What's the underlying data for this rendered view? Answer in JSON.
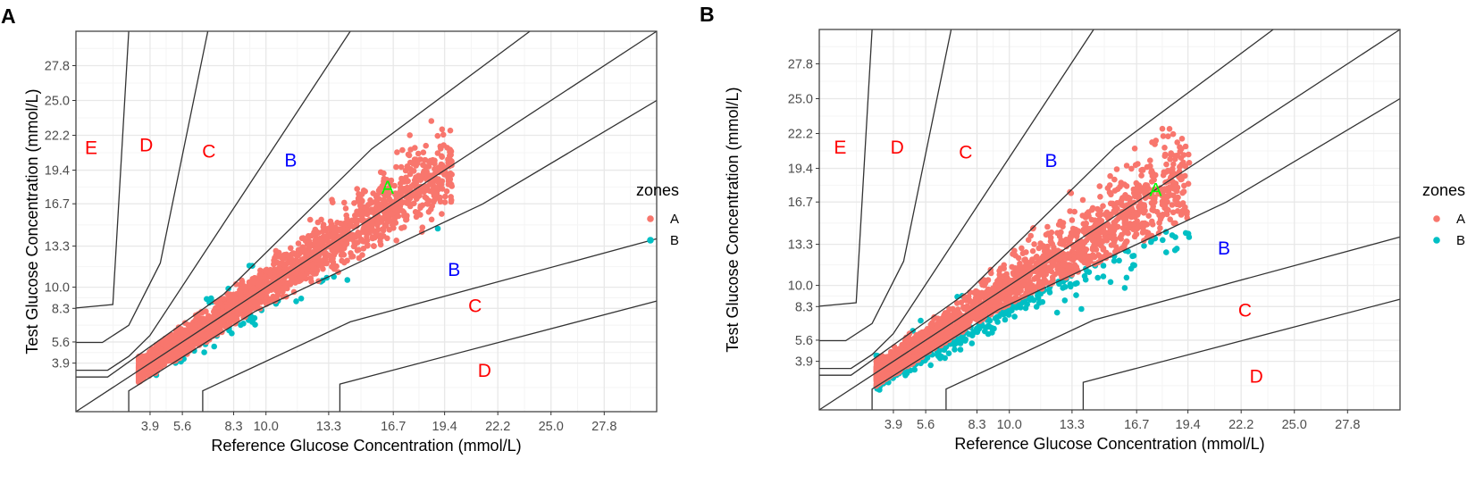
{
  "chart_data": [
    {
      "panel": "A",
      "type": "scatter",
      "title": "A",
      "xlabel": "Reference Glucose Concentration (mmol/L)",
      "ylabel": "Test Glucose Concentration (mmol/L)",
      "xlim": [
        0,
        30.56
      ],
      "ylim": [
        0,
        30.56
      ],
      "grid": true,
      "ticks": [
        3.9,
        5.6,
        8.3,
        10.0,
        13.3,
        16.7,
        19.4,
        22.2,
        25.0,
        27.8
      ],
      "tick_labels": [
        "3.9",
        "5.6",
        "8.3",
        "10.0",
        "13.3",
        "16.7",
        "19.4",
        "22.2",
        "25.0",
        "27.8"
      ],
      "zone_lines": [
        [
          [
            0,
            8.33
          ],
          [
            1.94,
            8.61
          ],
          [
            2.78,
            30.56
          ]
        ],
        [
          [
            0,
            5.56
          ],
          [
            1.39,
            5.56
          ],
          [
            2.78,
            6.94
          ],
          [
            4.44,
            11.94
          ],
          [
            6.94,
            30.56
          ]
        ],
        [
          [
            0,
            3.33
          ],
          [
            1.67,
            3.33
          ],
          [
            2.78,
            4.44
          ],
          [
            3.89,
            6.11
          ],
          [
            14.44,
            30.56
          ]
        ],
        [
          [
            0,
            2.78
          ],
          [
            1.67,
            2.78
          ],
          [
            7.78,
            9.44
          ],
          [
            15.56,
            21.11
          ],
          [
            23.89,
            30.56
          ]
        ],
        [
          [
            0,
            0
          ],
          [
            30.56,
            30.56
          ]
        ],
        [
          [
            2.78,
            0
          ],
          [
            2.78,
            1.67
          ],
          [
            9.44,
            8.06
          ],
          [
            21.39,
            16.67
          ],
          [
            30.56,
            25.0
          ]
        ],
        [
          [
            6.67,
            0
          ],
          [
            6.67,
            1.67
          ],
          [
            14.44,
            7.22
          ],
          [
            30.56,
            13.89
          ]
        ],
        [
          [
            13.89,
            0
          ],
          [
            13.89,
            2.22
          ],
          [
            30.56,
            8.89
          ]
        ]
      ],
      "zone_labels": [
        {
          "text": "E",
          "x": 0.8,
          "y": 21.2,
          "color": "#ff0000"
        },
        {
          "text": "D",
          "x": 3.7,
          "y": 21.4,
          "color": "#ff0000"
        },
        {
          "text": "C",
          "x": 7.0,
          "y": 20.9,
          "color": "#ff0000"
        },
        {
          "text": "B",
          "x": 11.3,
          "y": 20.2,
          "color": "#0000ff"
        },
        {
          "text": "A",
          "x": 16.4,
          "y": 18.0,
          "color": "#00ff00"
        },
        {
          "text": "B",
          "x": 19.9,
          "y": 11.4,
          "color": "#0000ff"
        },
        {
          "text": "C",
          "x": 21.0,
          "y": 8.5,
          "color": "#ff0000"
        },
        {
          "text": "D",
          "x": 21.5,
          "y": 3.3,
          "color": "#ff0000"
        }
      ],
      "legend": {
        "title": "zones",
        "position": "right",
        "entries": [
          {
            "label": "A",
            "color": "#F8766D"
          },
          {
            "label": "B",
            "color": "#00BFC4"
          }
        ]
      },
      "points": {
        "n": 2600,
        "seed": 11,
        "xmin": 3.3,
        "xspan": 16.5,
        "power": 2.0,
        "bias": 1.0,
        "rel_sd": 0.085,
        "abs_sd": 0.25
      }
    },
    {
      "panel": "B",
      "type": "scatter",
      "title": "B",
      "xlabel": "Reference Glucose Concentration (mmol/L)",
      "ylabel": "Test Glucose Concentration (mmol/L)",
      "xlim": [
        0,
        30.56
      ],
      "ylim": [
        0,
        30.56
      ],
      "grid": true,
      "ticks": [
        3.9,
        5.6,
        8.3,
        10.0,
        13.3,
        16.7,
        19.4,
        22.2,
        25.0,
        27.8
      ],
      "tick_labels": [
        "3.9",
        "5.6",
        "8.3",
        "10.0",
        "13.3",
        "16.7",
        "19.4",
        "22.2",
        "25.0",
        "27.8"
      ],
      "zone_lines": [
        [
          [
            0,
            8.33
          ],
          [
            1.94,
            8.61
          ],
          [
            2.78,
            30.56
          ]
        ],
        [
          [
            0,
            5.56
          ],
          [
            1.39,
            5.56
          ],
          [
            2.78,
            6.94
          ],
          [
            4.44,
            11.94
          ],
          [
            6.94,
            30.56
          ]
        ],
        [
          [
            0,
            3.33
          ],
          [
            1.67,
            3.33
          ],
          [
            2.78,
            4.44
          ],
          [
            3.89,
            6.11
          ],
          [
            14.44,
            30.56
          ]
        ],
        [
          [
            0,
            2.78
          ],
          [
            1.67,
            2.78
          ],
          [
            7.78,
            9.44
          ],
          [
            15.56,
            21.11
          ],
          [
            23.89,
            30.56
          ]
        ],
        [
          [
            0,
            0
          ],
          [
            30.56,
            30.56
          ]
        ],
        [
          [
            2.78,
            0
          ],
          [
            2.78,
            1.67
          ],
          [
            9.44,
            8.06
          ],
          [
            21.39,
            16.67
          ],
          [
            30.56,
            25.0
          ]
        ],
        [
          [
            6.67,
            0
          ],
          [
            6.67,
            1.67
          ],
          [
            14.44,
            7.22
          ],
          [
            30.56,
            13.89
          ]
        ],
        [
          [
            13.89,
            0
          ],
          [
            13.89,
            2.22
          ],
          [
            30.56,
            8.89
          ]
        ]
      ],
      "zone_labels": [
        {
          "text": "E",
          "x": 1.1,
          "y": 21.1,
          "color": "#ff0000"
        },
        {
          "text": "D",
          "x": 4.1,
          "y": 21.1,
          "color": "#ff0000"
        },
        {
          "text": "C",
          "x": 7.7,
          "y": 20.7,
          "color": "#ff0000"
        },
        {
          "text": "B",
          "x": 12.2,
          "y": 20.0,
          "color": "#0000ff"
        },
        {
          "text": "A",
          "x": 17.7,
          "y": 17.7,
          "color": "#00ff00"
        },
        {
          "text": "B",
          "x": 21.3,
          "y": 13.0,
          "color": "#0000ff"
        },
        {
          "text": "C",
          "x": 22.4,
          "y": 8.0,
          "color": "#ff0000"
        },
        {
          "text": "D",
          "x": 23.0,
          "y": 2.7,
          "color": "#ff0000"
        }
      ],
      "legend": {
        "title": "zones",
        "position": "right",
        "entries": [
          {
            "label": "A",
            "color": "#F8766D"
          },
          {
            "label": "B",
            "color": "#00BFC4"
          }
        ]
      },
      "points": {
        "n": 2600,
        "seed": 29,
        "xmin": 3.0,
        "xspan": 16.5,
        "power": 1.9,
        "bias": 0.95,
        "rel_sd": 0.11,
        "abs_sd": 0.3
      }
    }
  ]
}
